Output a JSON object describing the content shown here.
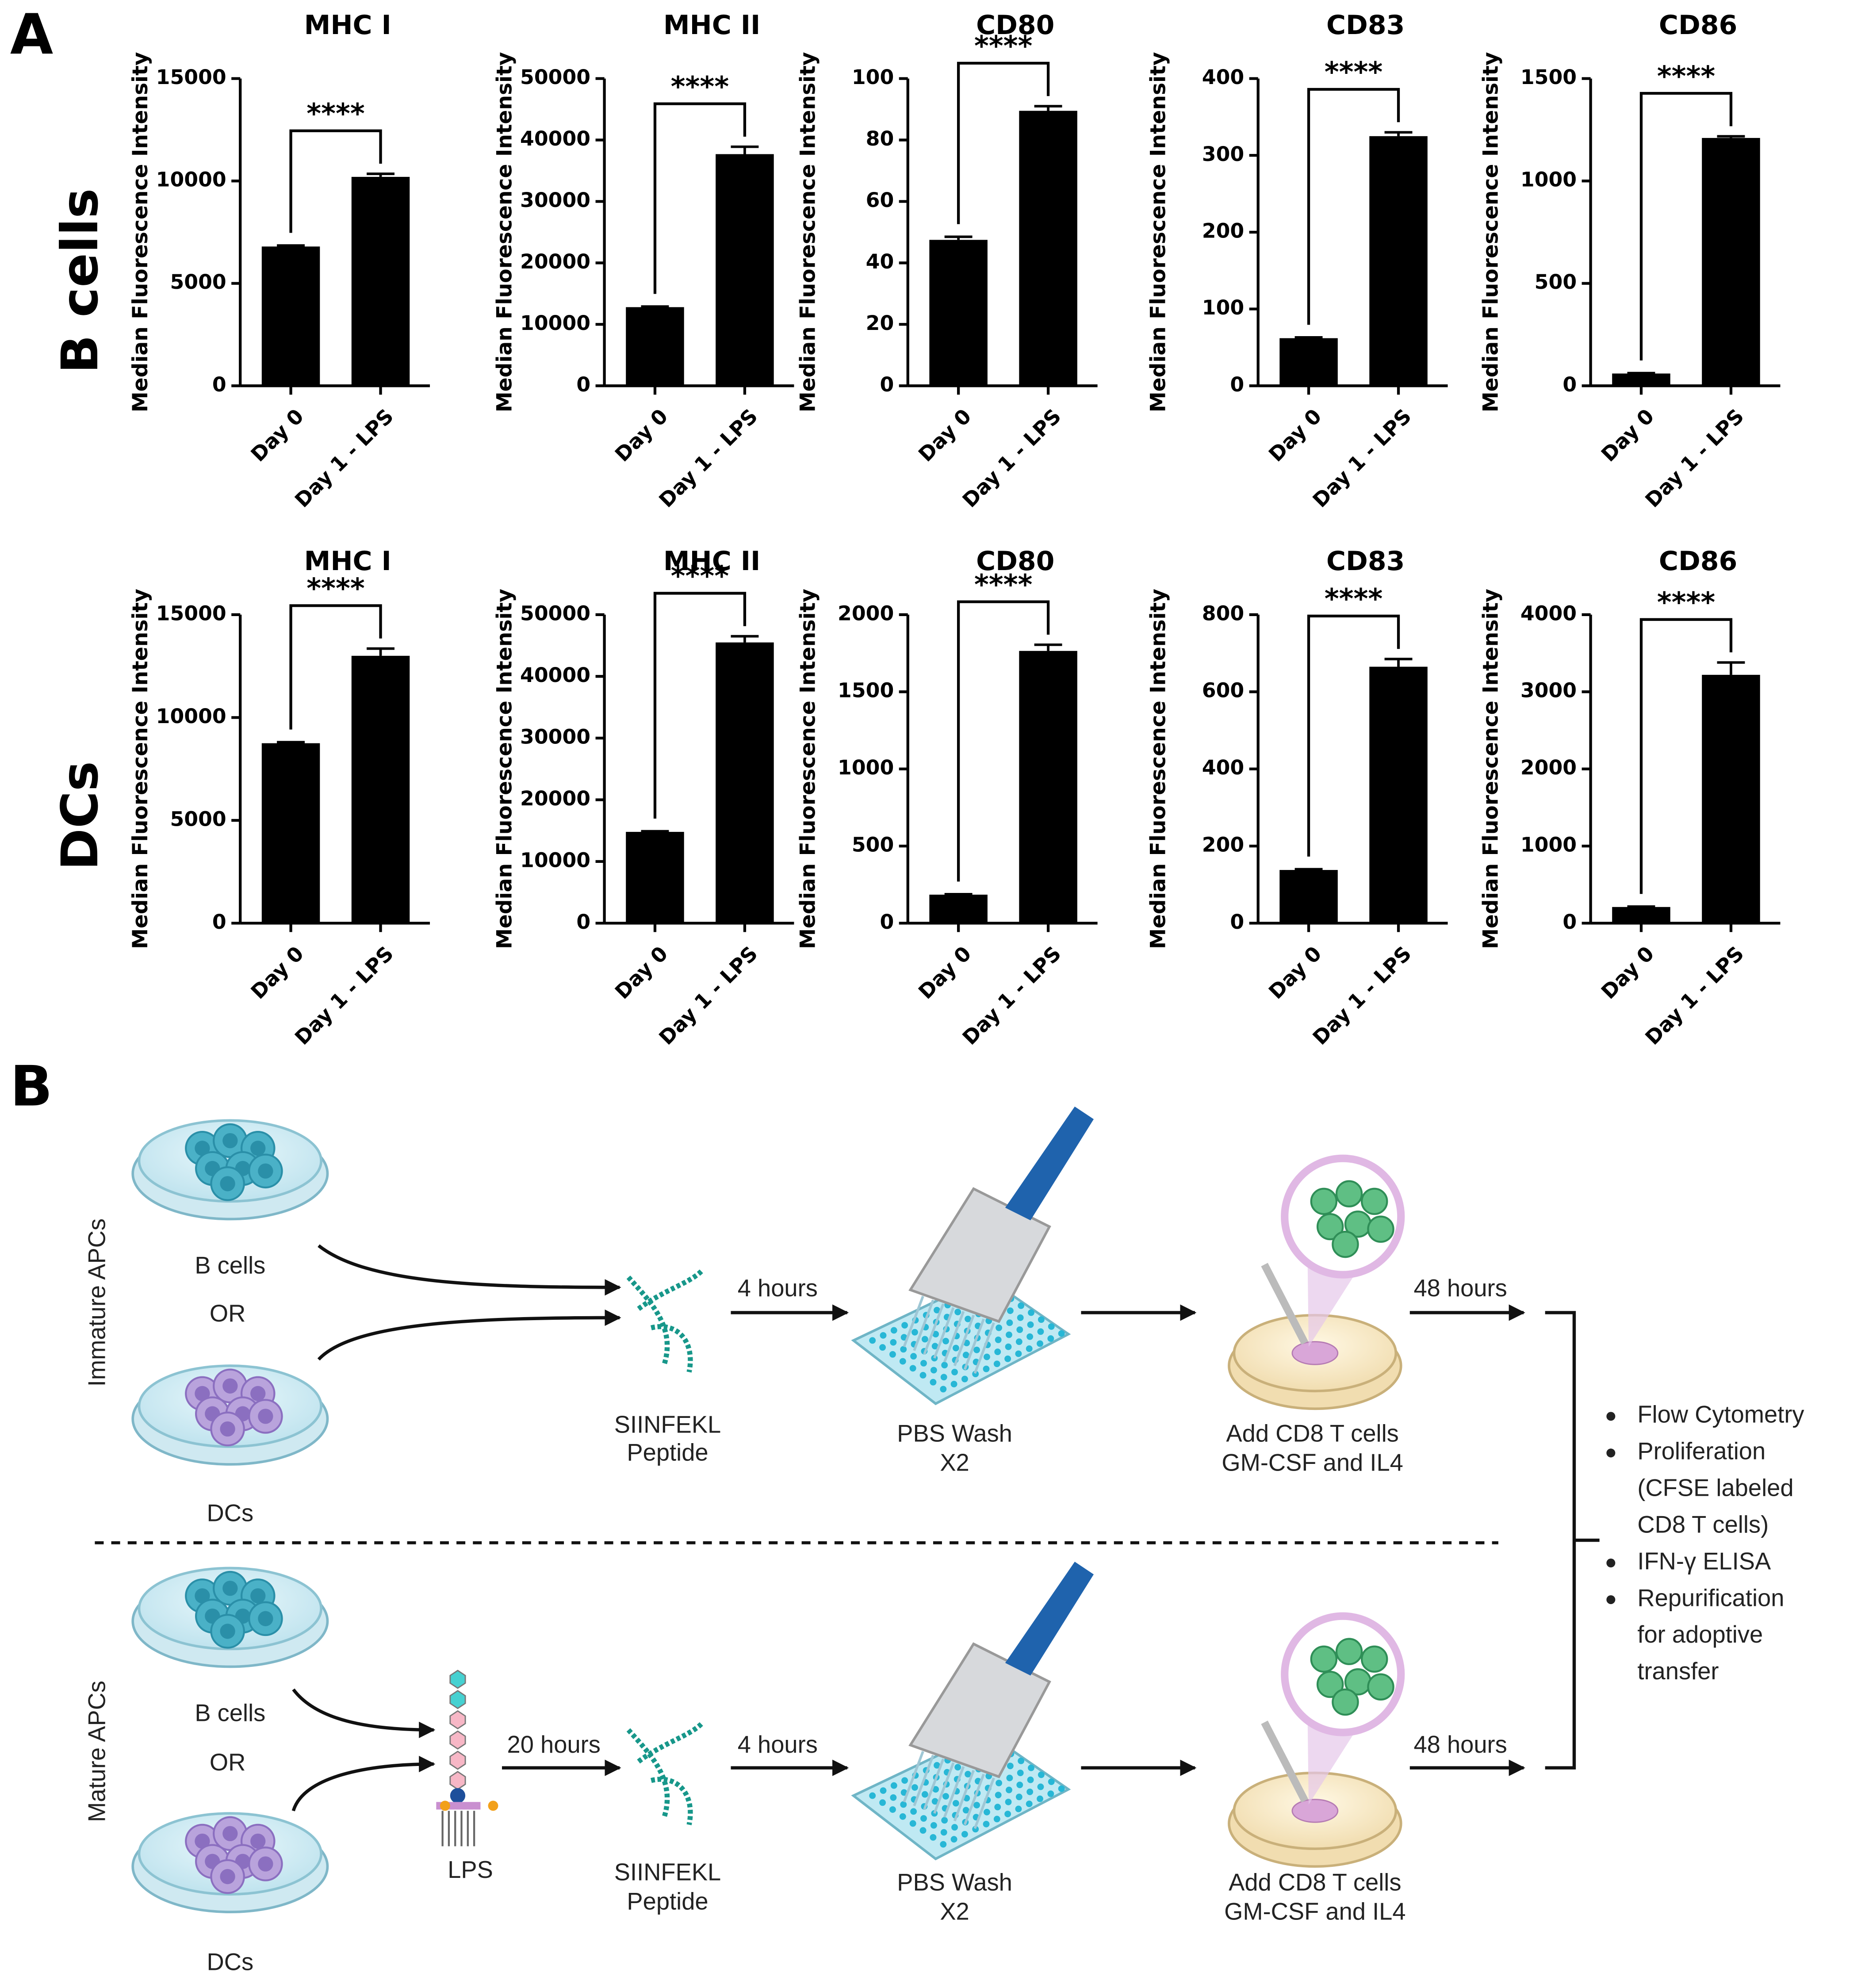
{
  "panel_labels": [
    "A",
    "B"
  ],
  "row_labels": [
    "B cells",
    "DCs"
  ],
  "chart_data": [
    {
      "type": "bar",
      "title": "MHC I",
      "ylabel": "Median Fluorescence Intensity",
      "categories": [
        "Day 0",
        "Day 1 - LPS"
      ],
      "values": [
        6800,
        10200
      ],
      "errors": [
        50,
        150
      ],
      "annotation": "****",
      "color": "#000000",
      "ylim": [
        0,
        15000
      ],
      "yticks": [
        0,
        5000,
        10000,
        15000
      ]
    },
    {
      "type": "bar",
      "title": "MHC II",
      "ylabel": "Median Fluorescence Intensity",
      "categories": [
        "Day 0",
        "Day 1 - LPS"
      ],
      "values": [
        12800,
        37700
      ],
      "errors": [
        100,
        1200
      ],
      "annotation": "****",
      "color": "#000000",
      "ylim": [
        0,
        50000
      ],
      "yticks": [
        0,
        10000,
        20000,
        30000,
        40000,
        50000
      ]
    },
    {
      "type": "bar",
      "title": "CD80",
      "ylabel": "Median Fluorescence Intensity",
      "categories": [
        "Day 0",
        "Day 1 - LPS"
      ],
      "values": [
        47.5,
        89.5
      ],
      "errors": [
        1,
        1.5
      ],
      "annotation": "****",
      "color": "#000000",
      "ylim": [
        0,
        100
      ],
      "yticks": [
        0,
        20,
        40,
        60,
        80,
        100
      ]
    },
    {
      "type": "bar",
      "title": "CD83",
      "ylabel": "Median Fluorescence Intensity",
      "categories": [
        "Day 0",
        "Day 1 - LPS"
      ],
      "values": [
        62,
        325
      ],
      "errors": [
        1,
        5
      ],
      "annotation": "****",
      "color": "#000000",
      "ylim": [
        0,
        400
      ],
      "yticks": [
        0,
        100,
        200,
        300,
        400
      ]
    },
    {
      "type": "bar",
      "title": "CD86",
      "ylabel": "Median Fluorescence Intensity",
      "categories": [
        "Day 0",
        "Day 1 - LPS"
      ],
      "values": [
        60,
        1210
      ],
      "errors": [
        2,
        8
      ],
      "annotation": "****",
      "color": "#000000",
      "ylim": [
        0,
        1500
      ],
      "yticks": [
        0,
        500,
        1000,
        1500
      ]
    },
    {
      "type": "bar",
      "title": "MHC I",
      "ylabel": "Median Fluorescence Intensity",
      "categories": [
        "Day 0",
        "Day 1 - LPS"
      ],
      "values": [
        8750,
        13000
      ],
      "errors": [
        50,
        350
      ],
      "annotation": "****",
      "color": "#000000",
      "ylim": [
        0,
        15000
      ],
      "yticks": [
        0,
        5000,
        10000,
        15000
      ]
    },
    {
      "type": "bar",
      "title": "MHC II",
      "ylabel": "Median Fluorescence Intensity",
      "categories": [
        "Day 0",
        "Day 1 - LPS"
      ],
      "values": [
        14800,
        45500
      ],
      "errors": [
        100,
        1000
      ],
      "annotation": "****",
      "color": "#000000",
      "ylim": [
        0,
        50000
      ],
      "yticks": [
        0,
        10000,
        20000,
        30000,
        40000,
        50000
      ]
    },
    {
      "type": "bar",
      "title": "CD80",
      "ylabel": "Median Fluorescence Intensity",
      "categories": [
        "Day 0",
        "Day 1 - LPS"
      ],
      "values": [
        185,
        1765
      ],
      "errors": [
        3,
        40
      ],
      "annotation": "****",
      "color": "#000000",
      "ylim": [
        0,
        2000
      ],
      "yticks": [
        0,
        500,
        1000,
        1500,
        2000
      ]
    },
    {
      "type": "bar",
      "title": "CD83",
      "ylabel": "Median Fluorescence Intensity",
      "categories": [
        "Day 0",
        "Day 1 - LPS"
      ],
      "values": [
        138,
        665
      ],
      "errors": [
        2,
        20
      ],
      "annotation": "****",
      "color": "#000000",
      "ylim": [
        0,
        800
      ],
      "yticks": [
        0,
        200,
        400,
        600,
        800
      ]
    },
    {
      "type": "bar",
      "title": "CD86",
      "ylabel": "Median Fluorescence Intensity",
      "categories": [
        "Day 0",
        "Day 1 - LPS"
      ],
      "values": [
        210,
        3220
      ],
      "errors": [
        5,
        160
      ],
      "annotation": "****",
      "color": "#000000",
      "ylim": [
        0,
        4000
      ],
      "yticks": [
        0,
        1000,
        2000,
        3000,
        4000
      ]
    }
  ],
  "diagram": {
    "immature": {
      "label": "Immature APCs",
      "cell1": "B cells",
      "or": "OR",
      "cell2": "DCs",
      "peptide": [
        "SIINFEKL",
        "Peptide"
      ],
      "time1": "4 hours",
      "wash": [
        "PBS Wash",
        "X2"
      ],
      "add": [
        "Add CD8 T cells",
        "GM-CSF and IL4"
      ],
      "time2": "48 hours"
    },
    "mature": {
      "label": "Mature APCs",
      "cell1": "B cells",
      "or": "OR",
      "cell2": "DCs",
      "lps": "LPS",
      "time0": "20 hours",
      "peptide": [
        "SIINFEKL",
        "Peptide"
      ],
      "time1": "4 hours",
      "wash": [
        "PBS Wash",
        "X2"
      ],
      "add": [
        "Add CD8 T cells",
        "GM-CSF and IL4"
      ],
      "time2": "48 hours"
    },
    "readouts": [
      [
        "Flow Cytometry"
      ],
      [
        "Proliferation",
        "(CFSE labeled",
        "CD8 T cells)"
      ],
      [
        "IFN-γ ELISA"
      ],
      [
        "Repurification",
        "for adoptive",
        "transfer"
      ]
    ]
  }
}
